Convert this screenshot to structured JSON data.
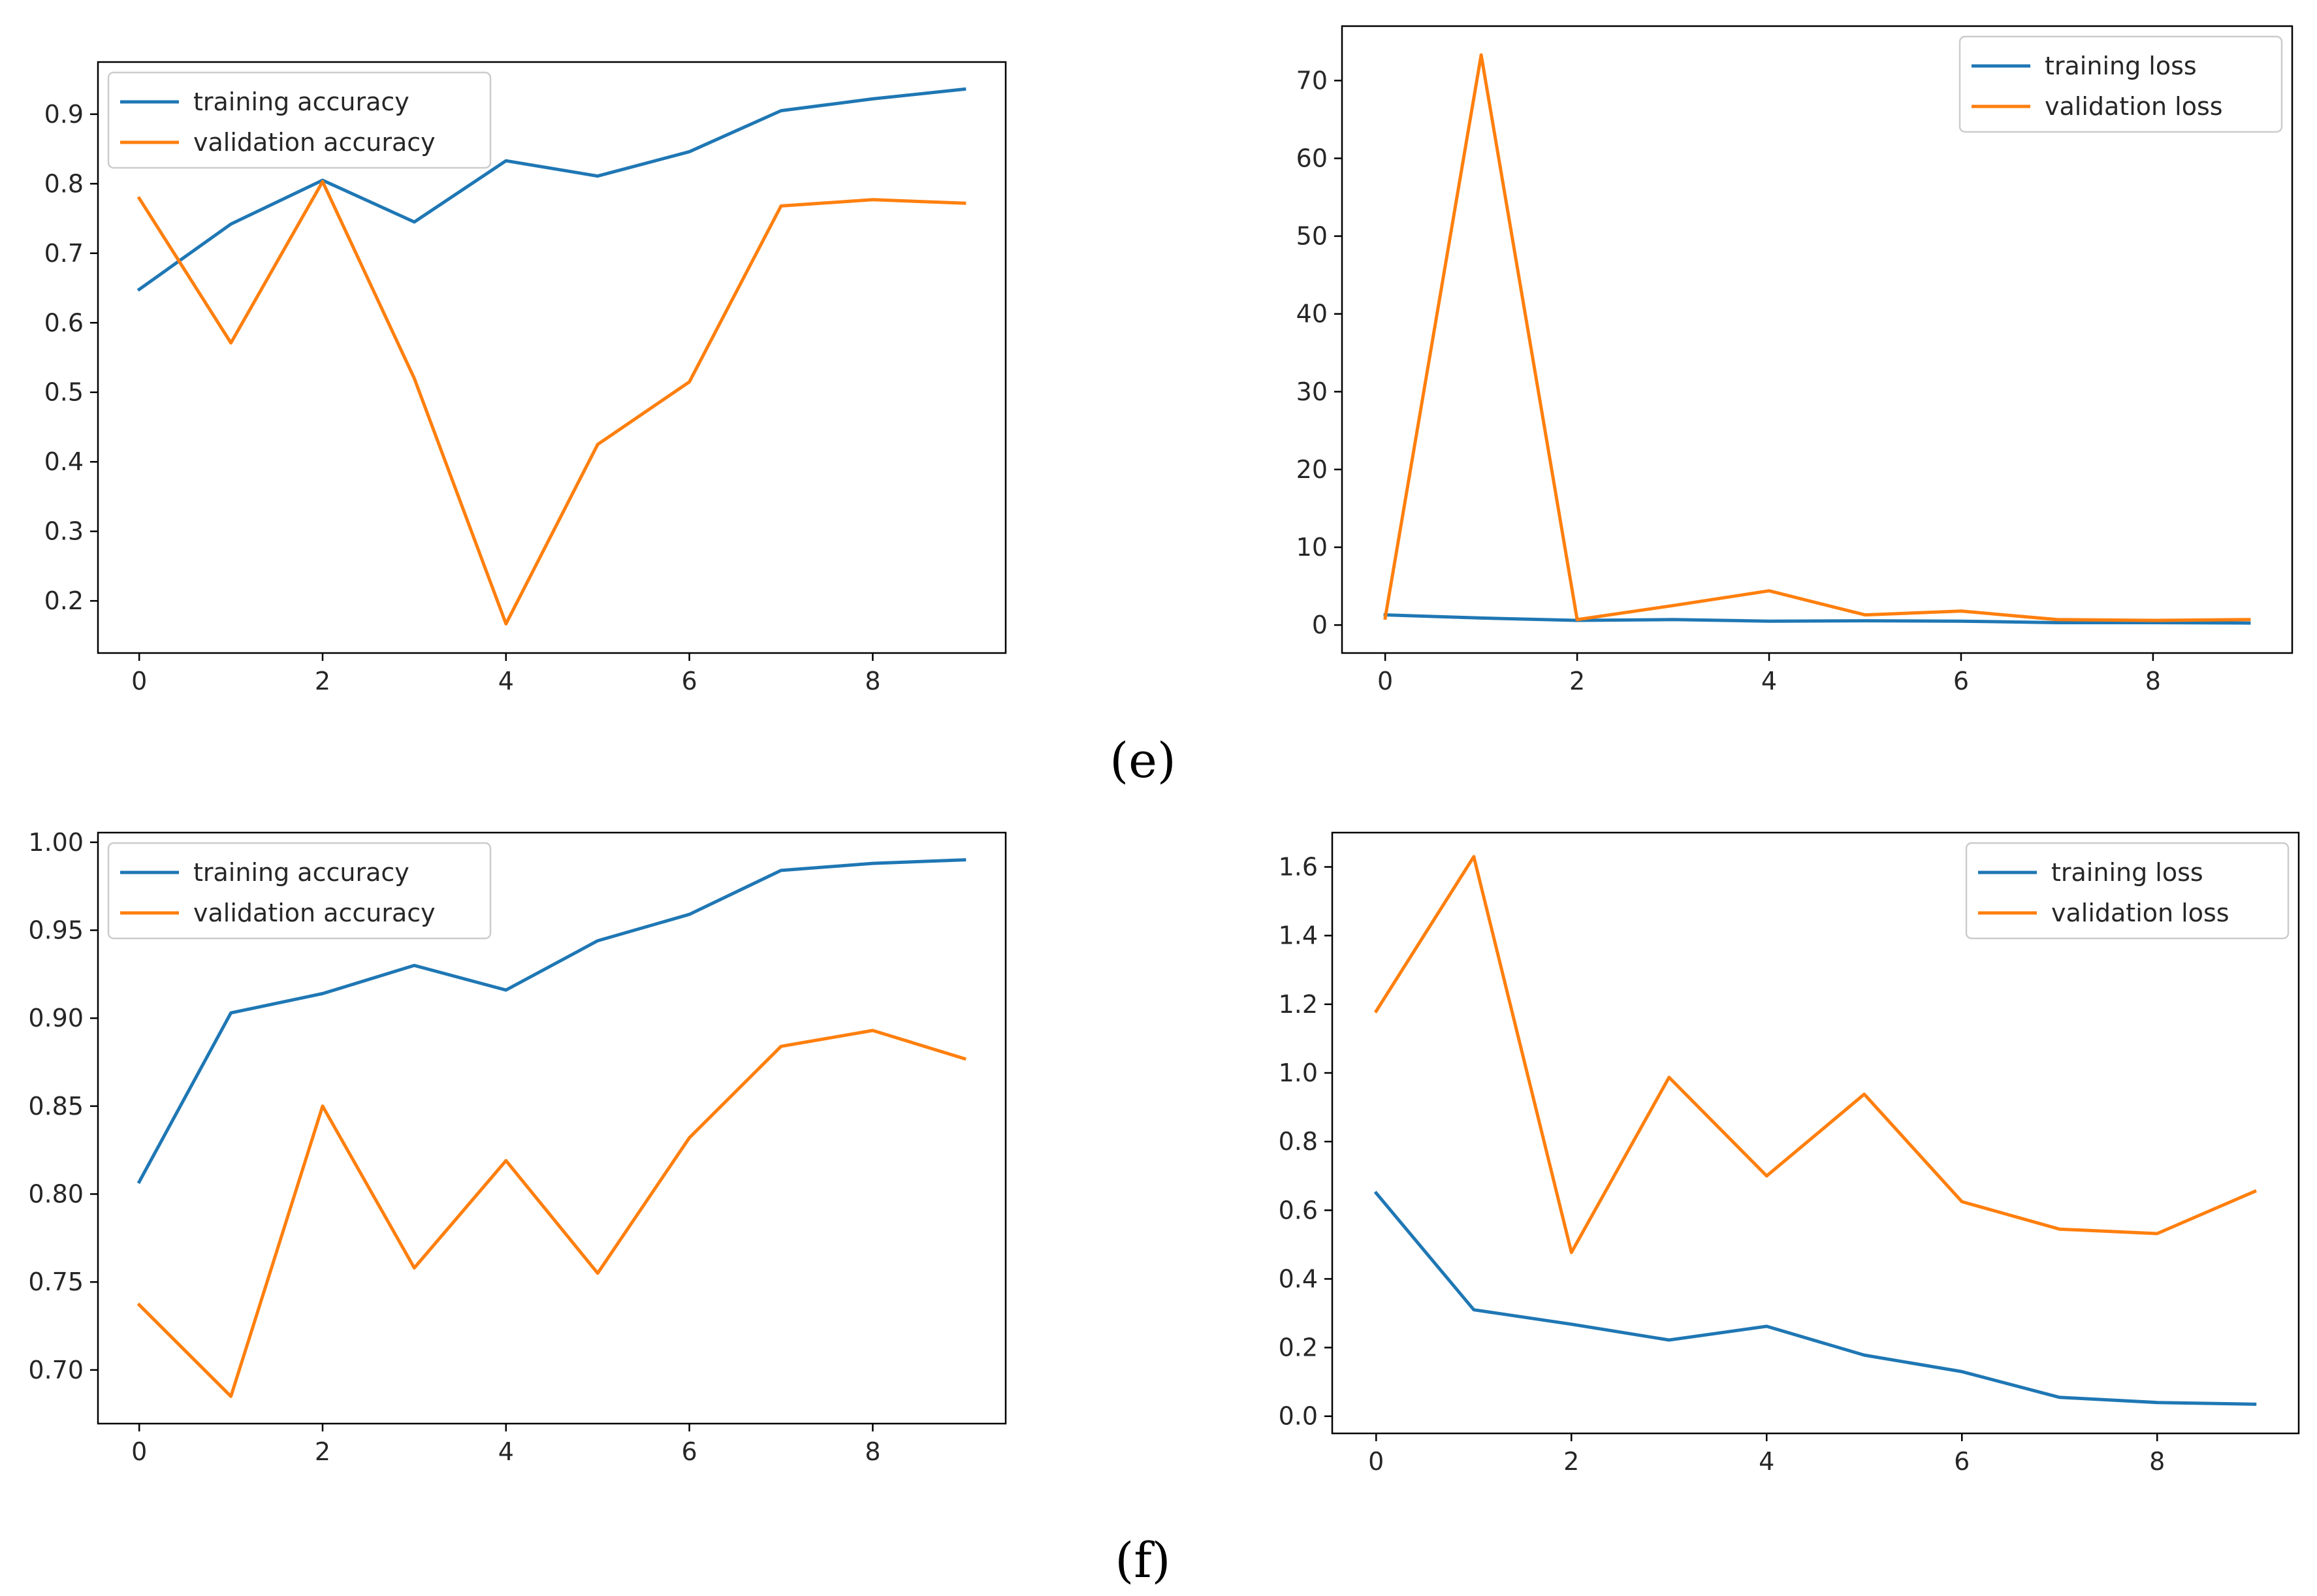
{
  "panel_labels": {
    "e": "(e)",
    "f": "(f)"
  },
  "colors": {
    "training": "#1f77b4",
    "validation": "#ff7f0e",
    "axis": "#000000",
    "tick_text": "#262626",
    "legend_border": "#cccccc"
  },
  "chart_data": [
    {
      "id": "e-accuracy",
      "type": "line",
      "title": "",
      "xlabel": "",
      "ylabel": "",
      "x": [
        0,
        1,
        2,
        3,
        4,
        5,
        6,
        7,
        8,
        9
      ],
      "xlim": [
        -0.45,
        9.45
      ],
      "ylim": [
        0.125,
        0.975
      ],
      "xticks": [
        0,
        2,
        4,
        6,
        8
      ],
      "xtick_labels": [
        "0",
        "2",
        "4",
        "6",
        "8"
      ],
      "yticks": [
        0.2,
        0.3,
        0.4,
        0.5,
        0.6,
        0.7,
        0.8,
        0.9
      ],
      "ytick_labels": [
        "0.2",
        "0.3",
        "0.4",
        "0.5",
        "0.6",
        "0.7",
        "0.8",
        "0.9"
      ],
      "legend": "upper-left",
      "grid": false,
      "series": [
        {
          "name": "training accuracy",
          "color_key": "training",
          "values": [
            0.648,
            0.742,
            0.805,
            0.745,
            0.833,
            0.811,
            0.846,
            0.905,
            0.922,
            0.936
          ]
        },
        {
          "name": "validation accuracy",
          "color_key": "validation",
          "values": [
            0.779,
            0.571,
            0.803,
            0.52,
            0.167,
            0.425,
            0.515,
            0.768,
            0.777,
            0.772
          ]
        }
      ]
    },
    {
      "id": "e-loss",
      "type": "line",
      "title": "",
      "xlabel": "",
      "ylabel": "",
      "x": [
        0,
        1,
        2,
        3,
        4,
        5,
        6,
        7,
        8,
        9
      ],
      "xlim": [
        -0.45,
        9.45
      ],
      "ylim": [
        -3.6,
        77.0
      ],
      "xticks": [
        0,
        2,
        4,
        6,
        8
      ],
      "xtick_labels": [
        "0",
        "2",
        "4",
        "6",
        "8"
      ],
      "yticks": [
        0,
        10,
        20,
        30,
        40,
        50,
        60,
        70
      ],
      "ytick_labels": [
        "0",
        "10",
        "20",
        "30",
        "40",
        "50",
        "60",
        "70"
      ],
      "legend": "upper-right",
      "grid": false,
      "series": [
        {
          "name": "training loss",
          "color_key": "training",
          "values": [
            1.3,
            0.9,
            0.6,
            0.7,
            0.5,
            0.55,
            0.5,
            0.3,
            0.3,
            0.25
          ]
        },
        {
          "name": "validation loss",
          "color_key": "validation",
          "values": [
            0.9,
            73.3,
            0.7,
            2.5,
            4.4,
            1.3,
            1.8,
            0.7,
            0.6,
            0.7
          ]
        }
      ]
    },
    {
      "id": "f-accuracy",
      "type": "line",
      "title": "",
      "xlabel": "",
      "ylabel": "",
      "x": [
        0,
        1,
        2,
        3,
        4,
        5,
        6,
        7,
        8,
        9
      ],
      "xlim": [
        -0.45,
        9.45
      ],
      "ylim": [
        0.6695,
        1.0055
      ],
      "xticks": [
        0,
        2,
        4,
        6,
        8
      ],
      "xtick_labels": [
        "0",
        "2",
        "4",
        "6",
        "8"
      ],
      "yticks": [
        0.7,
        0.75,
        0.8,
        0.85,
        0.9,
        0.95,
        1.0
      ],
      "ytick_labels": [
        "0.70",
        "0.75",
        "0.80",
        "0.85",
        "0.90",
        "0.95",
        "1.00"
      ],
      "legend": "upper-left",
      "grid": false,
      "series": [
        {
          "name": "training accuracy",
          "color_key": "training",
          "values": [
            0.807,
            0.903,
            0.914,
            0.93,
            0.916,
            0.944,
            0.959,
            0.984,
            0.988,
            0.99
          ]
        },
        {
          "name": "validation accuracy",
          "color_key": "validation",
          "values": [
            0.737,
            0.685,
            0.85,
            0.758,
            0.819,
            0.755,
            0.832,
            0.884,
            0.893,
            0.877
          ]
        }
      ]
    },
    {
      "id": "f-loss",
      "type": "line",
      "title": "",
      "xlabel": "",
      "ylabel": "",
      "x": [
        0,
        1,
        2,
        3,
        4,
        5,
        6,
        7,
        8,
        9
      ],
      "xlim": [
        -0.45,
        9.45
      ],
      "ylim": [
        -0.05,
        1.7
      ],
      "xticks": [
        0,
        2,
        4,
        6,
        8
      ],
      "xtick_labels": [
        "0",
        "2",
        "4",
        "6",
        "8"
      ],
      "yticks": [
        0.0,
        0.2,
        0.4,
        0.6,
        0.8,
        1.0,
        1.2,
        1.4,
        1.6
      ],
      "ytick_labels": [
        "0.0",
        "0.2",
        "0.4",
        "0.6",
        "0.8",
        "1.0",
        "1.2",
        "1.4",
        "1.6"
      ],
      "legend": "upper-right",
      "grid": false,
      "series": [
        {
          "name": "training loss",
          "color_key": "training",
          "values": [
            0.65,
            0.31,
            0.268,
            0.222,
            0.262,
            0.178,
            0.13,
            0.055,
            0.04,
            0.035
          ]
        },
        {
          "name": "validation loss",
          "color_key": "validation",
          "values": [
            1.18,
            1.63,
            0.477,
            0.987,
            0.7,
            0.938,
            0.625,
            0.545,
            0.532,
            0.655
          ]
        }
      ]
    }
  ]
}
